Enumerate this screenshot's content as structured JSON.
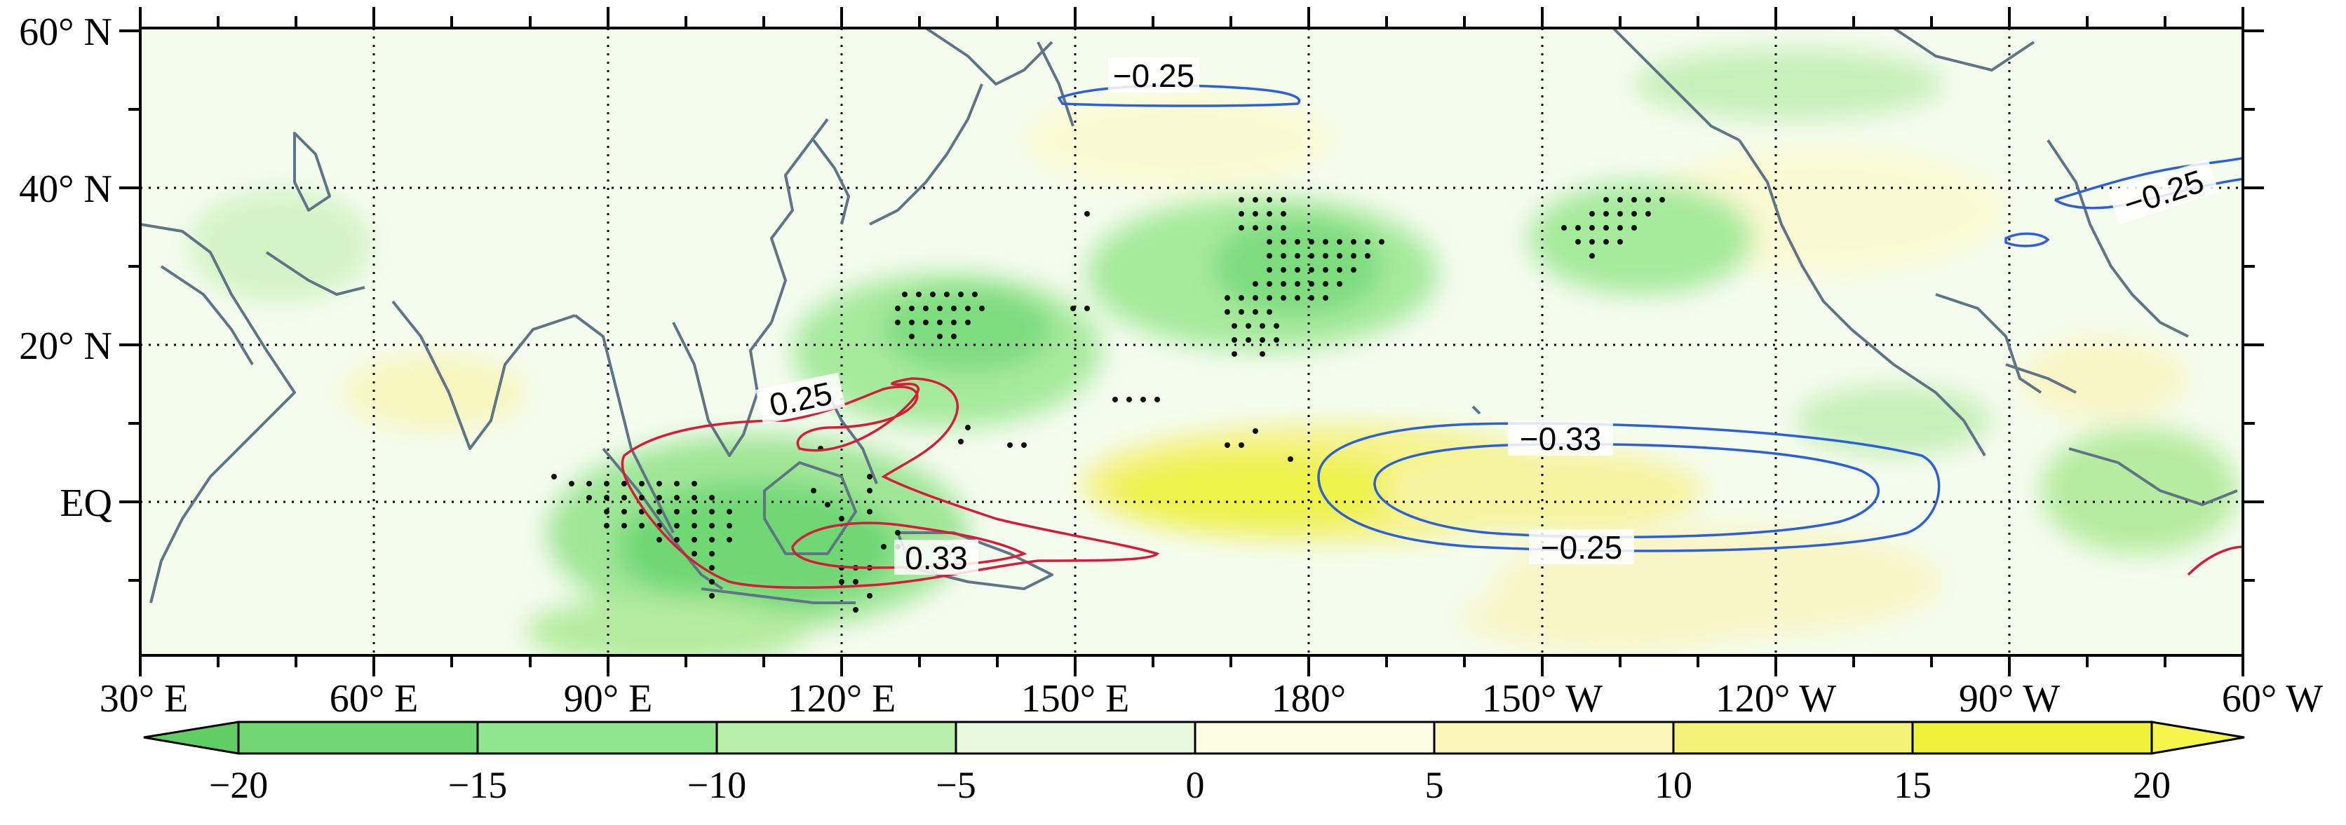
{
  "figure": {
    "lat_labels": [
      "60° N",
      "40° N",
      "20° N",
      "EQ"
    ],
    "lon_labels": [
      "30° E",
      "60° E",
      "90° E",
      "120° E",
      "150° E",
      "180°",
      "150° W",
      "120° W",
      "90° W",
      "60° W"
    ],
    "colorbar": {
      "ticks": [
        "−20",
        "−15",
        "−10",
        "−5",
        "0",
        "5",
        "10",
        "15",
        "20"
      ],
      "colors": [
        "#5fcf63",
        "#6fd873",
        "#8fe68d",
        "#b7f0a8",
        "#e6fbdc",
        "#fdfde4",
        "#fbf7b8",
        "#f5f27a",
        "#eef23a",
        "#f6f64a"
      ],
      "extend": "both"
    },
    "contour_labels": {
      "neg_025_north": "−0.25",
      "neg_025_east": "−0.25",
      "neg_033": "−0.33",
      "neg_025_central": "−0.25",
      "pos_025": "0.25",
      "pos_033": "0.33"
    },
    "colors": {
      "positive_contour": "#d71b3b",
      "negative_contour": "#2d5fd6",
      "coastline": "#5f7585",
      "grid": "#000000"
    }
  }
}
